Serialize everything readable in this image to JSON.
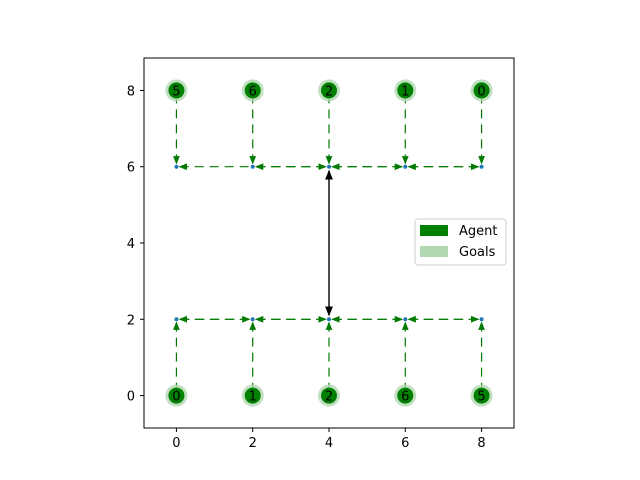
{
  "chart_data": {
    "type": "scatter",
    "title": "",
    "xlabel": "",
    "ylabel": "",
    "xlim": [
      -0.85,
      8.85
    ],
    "ylim": [
      -0.85,
      8.85
    ],
    "xticks": [
      "0",
      "2",
      "4",
      "6",
      "8"
    ],
    "yticks": [
      "0",
      "2",
      "4",
      "6",
      "8"
    ],
    "grid": false,
    "legend_position": "right",
    "legend": [
      {
        "name": "Agent",
        "color": "#008000"
      },
      {
        "name": "Goals",
        "color": "#b2d8b2"
      }
    ],
    "agents": [
      {
        "x": 0,
        "y": 8,
        "label": "5"
      },
      {
        "x": 2,
        "y": 8,
        "label": "6"
      },
      {
        "x": 4,
        "y": 8,
        "label": "2"
      },
      {
        "x": 6,
        "y": 8,
        "label": "1"
      },
      {
        "x": 8,
        "y": 8,
        "label": "0"
      },
      {
        "x": 0,
        "y": 0,
        "label": "0"
      },
      {
        "x": 2,
        "y": 0,
        "label": "1"
      },
      {
        "x": 4,
        "y": 0,
        "label": "2"
      },
      {
        "x": 6,
        "y": 0,
        "label": "6"
      },
      {
        "x": 8,
        "y": 0,
        "label": "5"
      }
    ],
    "waypoints": [
      {
        "x": 0,
        "y": 6
      },
      {
        "x": 2,
        "y": 6
      },
      {
        "x": 4,
        "y": 6
      },
      {
        "x": 6,
        "y": 6
      },
      {
        "x": 8,
        "y": 6
      },
      {
        "x": 0,
        "y": 2
      },
      {
        "x": 2,
        "y": 2
      },
      {
        "x": 4,
        "y": 2
      },
      {
        "x": 6,
        "y": 2
      },
      {
        "x": 8,
        "y": 2
      }
    ],
    "paths": [
      {
        "from": [
          0,
          8
        ],
        "to": [
          0,
          6
        ]
      },
      {
        "from": [
          2,
          8
        ],
        "to": [
          2,
          6
        ]
      },
      {
        "from": [
          4,
          8
        ],
        "to": [
          4,
          6
        ]
      },
      {
        "from": [
          6,
          8
        ],
        "to": [
          6,
          6
        ]
      },
      {
        "from": [
          8,
          8
        ],
        "to": [
          8,
          6
        ]
      },
      {
        "from": [
          2,
          6
        ],
        "to": [
          0,
          6
        ]
      },
      {
        "from": [
          4,
          6
        ],
        "to": [
          2,
          6
        ]
      },
      {
        "from": [
          2,
          6
        ],
        "to": [
          4,
          6
        ]
      },
      {
        "from": [
          6,
          6
        ],
        "to": [
          4,
          6
        ]
      },
      {
        "from": [
          4,
          6
        ],
        "to": [
          6,
          6
        ]
      },
      {
        "from": [
          8,
          6
        ],
        "to": [
          6,
          6
        ]
      },
      {
        "from": [
          6,
          6
        ],
        "to": [
          8,
          6
        ]
      },
      {
        "from": [
          0,
          0
        ],
        "to": [
          0,
          2
        ]
      },
      {
        "from": [
          2,
          0
        ],
        "to": [
          2,
          2
        ]
      },
      {
        "from": [
          4,
          0
        ],
        "to": [
          4,
          2
        ]
      },
      {
        "from": [
          6,
          0
        ],
        "to": [
          6,
          2
        ]
      },
      {
        "from": [
          8,
          0
        ],
        "to": [
          8,
          2
        ]
      },
      {
        "from": [
          2,
          2
        ],
        "to": [
          0,
          2
        ]
      },
      {
        "from": [
          0,
          2
        ],
        "to": [
          2,
          2
        ]
      },
      {
        "from": [
          4,
          2
        ],
        "to": [
          2,
          2
        ]
      },
      {
        "from": [
          2,
          2
        ],
        "to": [
          4,
          2
        ]
      },
      {
        "from": [
          6,
          2
        ],
        "to": [
          4,
          2
        ]
      },
      {
        "from": [
          4,
          2
        ],
        "to": [
          6,
          2
        ]
      },
      {
        "from": [
          8,
          2
        ],
        "to": [
          6,
          2
        ]
      },
      {
        "from": [
          6,
          2
        ],
        "to": [
          8,
          2
        ]
      }
    ],
    "bidirectional_link": {
      "from": [
        4,
        2
      ],
      "to": [
        4,
        6
      ],
      "color": "#000000"
    },
    "colors": {
      "agent": "#008000",
      "goal": "#b2d8b2",
      "path": "#007a00",
      "waypoint": "#1f77b4"
    }
  }
}
